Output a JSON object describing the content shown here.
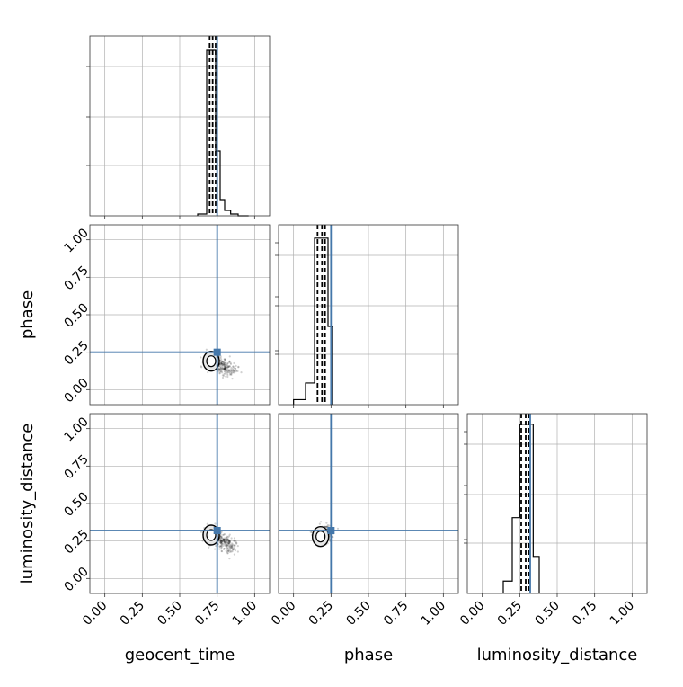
{
  "chart_data": {
    "type": "scatter",
    "kind": "corner-plot",
    "parameters": [
      "geocent_time",
      "phase",
      "luminosity_distance"
    ],
    "axis_range": [
      -0.1,
      1.1
    ],
    "ticks": [
      0.0,
      0.25,
      0.5,
      0.75,
      1.0
    ],
    "tick_labels": [
      "0.00",
      "0.25",
      "0.50",
      "0.75",
      "1.00"
    ],
    "grid": true,
    "truth_color": "#4477aa",
    "truths": {
      "geocent_time": 0.75,
      "phase": 0.25,
      "luminosity_distance": 0.32
    },
    "histograms": [
      {
        "parameter": "geocent_time",
        "bin_edges": [
          0.62,
          0.68,
          0.71,
          0.74,
          0.77,
          0.8,
          0.84,
          0.89,
          0.96
        ],
        "counts": [
          0.01,
          0.92,
          0.92,
          0.36,
          0.09,
          0.03,
          0.01,
          0.0
        ],
        "ymax": 1.0,
        "quantiles": [
          0.7,
          0.72,
          0.74
        ],
        "truth": 0.75
      },
      {
        "parameter": "phase",
        "bin_edges": [
          0.0,
          0.08,
          0.14,
          0.19,
          0.23,
          0.26
        ],
        "counts": [
          0.03,
          0.13,
          1.0,
          1.0,
          0.47
        ],
        "ymax": 1.08,
        "quantiles": [
          0.16,
          0.19,
          0.21
        ],
        "truth": 0.25
      },
      {
        "parameter": "luminosity_distance",
        "bin_edges": [
          0.14,
          0.2,
          0.25,
          0.3,
          0.34,
          0.38
        ],
        "counts": [
          0.07,
          0.43,
          0.96,
          0.96,
          0.21
        ],
        "ymax": 1.02,
        "quantiles": [
          0.26,
          0.29,
          0.31
        ],
        "truth": 0.32
      }
    ],
    "scatter_panels": [
      {
        "x": "geocent_time",
        "y": "phase",
        "center": [
          0.71,
          0.19
        ],
        "tail": [
          0.86,
          0.12
        ],
        "truth": [
          0.75,
          0.25
        ]
      },
      {
        "x": "geocent_time",
        "y": "luminosity_distance",
        "center": [
          0.71,
          0.29
        ],
        "tail": [
          0.86,
          0.2
        ],
        "truth": [
          0.75,
          0.32
        ]
      },
      {
        "x": "phase",
        "y": "luminosity_distance",
        "center": [
          0.18,
          0.28
        ],
        "tail": [
          0.22,
          0.32
        ],
        "truth": [
          0.25,
          0.32
        ]
      }
    ]
  }
}
